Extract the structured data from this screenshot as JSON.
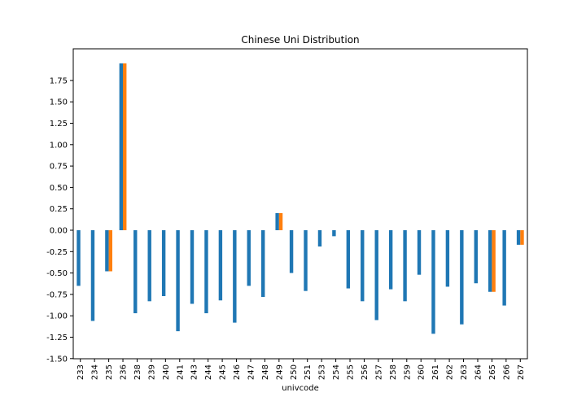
{
  "chart_data": {
    "type": "bar",
    "title": "Chinese Uni Distribution",
    "xlabel": "univcode",
    "ylabel": "",
    "ylim": [
      -1.5,
      1.98
    ],
    "yticks": [
      "-1.50",
      "-1.25",
      "-1.00",
      "-0.75",
      "-0.50",
      "-0.25",
      "0.00",
      "0.25",
      "0.50",
      "0.75",
      "1.00",
      "1.25",
      "1.50",
      "1.75"
    ],
    "legend": false,
    "grid": false,
    "categories": [
      "233",
      "234",
      "235",
      "236",
      "238",
      "239",
      "240",
      "241",
      "243",
      "244",
      "245",
      "246",
      "247",
      "248",
      "249",
      "250",
      "251",
      "253",
      "254",
      "255",
      "256",
      "257",
      "258",
      "259",
      "260",
      "261",
      "262",
      "263",
      "264",
      "265",
      "266",
      "267"
    ],
    "series": [
      {
        "color": "#1f77b4",
        "values": [
          -0.65,
          -1.06,
          -0.48,
          1.95,
          -0.97,
          -0.83,
          -0.77,
          -1.18,
          -0.86,
          -0.97,
          -0.82,
          -1.08,
          -0.65,
          -0.78,
          0.2,
          -0.5,
          -0.71,
          -0.19,
          -0.07,
          -0.68,
          -0.83,
          -1.05,
          -0.69,
          -0.83,
          -0.52,
          -1.21,
          -0.66,
          -1.1,
          -0.62,
          -0.72,
          -0.88,
          -0.17
        ]
      },
      {
        "color": "#ff7f0e",
        "values": [
          0,
          0,
          -0.48,
          1.95,
          0,
          0,
          0,
          0,
          0,
          0,
          0,
          0,
          0,
          0,
          0.2,
          0,
          0,
          0,
          0,
          0,
          0,
          0,
          0,
          0,
          0,
          0,
          0,
          0,
          0,
          -0.72,
          0,
          -0.17
        ]
      }
    ]
  }
}
